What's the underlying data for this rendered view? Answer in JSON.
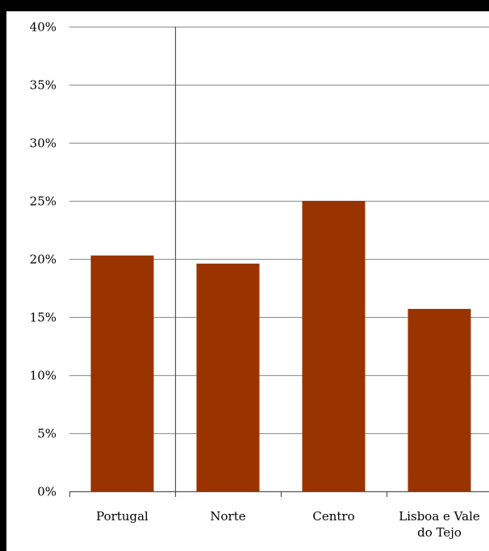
{
  "chart_data": {
    "type": "bar",
    "title": "",
    "xlabel": "",
    "ylabel": "",
    "categories": [
      "Portugal",
      "Norte",
      "Centro",
      "Lisboa e Vale do Tejo"
    ],
    "category_lines": [
      [
        "Portugal"
      ],
      [
        "Norte"
      ],
      [
        "Centro"
      ],
      [
        "Lisboa e Vale",
        "do Tejo"
      ]
    ],
    "values": [
      20.3,
      19.6,
      25.0,
      15.7
    ],
    "ylim": [
      0,
      40
    ],
    "yticks": [
      0,
      5,
      10,
      15,
      20,
      25,
      30,
      35,
      40
    ],
    "ytick_labels": [
      "0%",
      "5%",
      "10%",
      "15%",
      "20%",
      "25%",
      "30%",
      "35%",
      "40%"
    ],
    "grid": true,
    "legend": "none",
    "colors": {
      "bar": "#993300",
      "grid": "#9a9a9a",
      "axis": "#555555",
      "background": "#ffffff",
      "frame": "#000000"
    }
  }
}
